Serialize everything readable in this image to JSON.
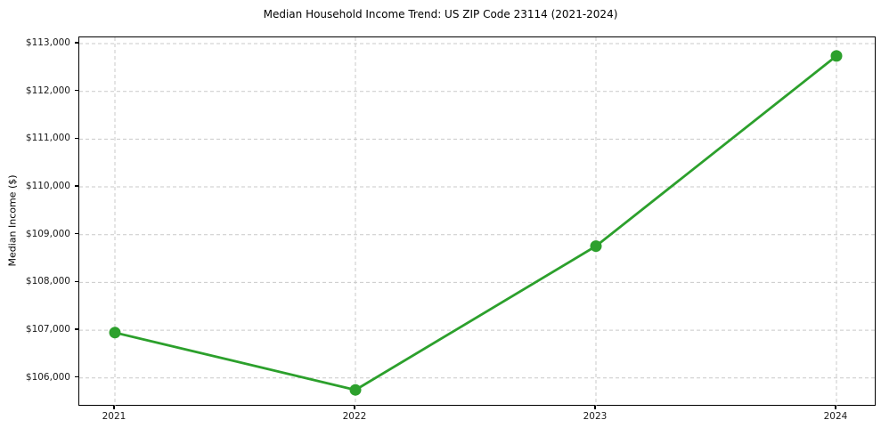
{
  "chart_data": {
    "type": "line",
    "title": "Median Household Income Trend: US ZIP Code 23114 (2021-2024)",
    "xlabel": "",
    "ylabel": "Median Income ($)",
    "x": [
      2021,
      2022,
      2023,
      2024
    ],
    "xtick_labels": [
      "2021",
      "2022",
      "2023",
      "2024"
    ],
    "values": [
      106950,
      105750,
      108760,
      112740
    ],
    "ylim": [
      105400,
      113130
    ],
    "yticks": [
      106000,
      107000,
      108000,
      109000,
      110000,
      111000,
      112000,
      113000
    ],
    "ytick_labels": [
      "$106,000",
      "$107,000",
      "$108,000",
      "$109,000",
      "$110,000",
      "$111,000",
      "$112,000",
      "$113,000"
    ],
    "grid": true,
    "grid_style": "dashed",
    "legend": false,
    "colors": {
      "line": "#2ca02c",
      "marker": "#2ca02c",
      "grid": "#c9c9c9",
      "axis": "#000000",
      "text": "#1a1a1a"
    }
  }
}
